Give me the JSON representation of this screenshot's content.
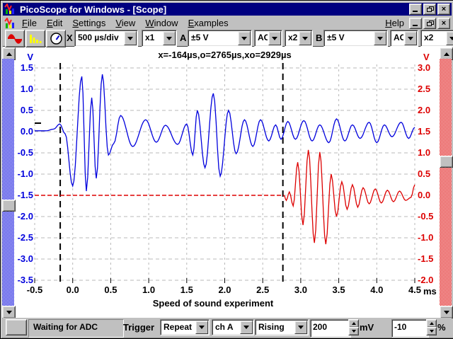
{
  "window": {
    "title": "PicoScope for Windows - [Scope]"
  },
  "menu": {
    "items": [
      {
        "label": "File",
        "u": 0
      },
      {
        "label": "Edit",
        "u": 0
      },
      {
        "label": "Settings",
        "u": 0
      },
      {
        "label": "View",
        "u": 0
      },
      {
        "label": "Window",
        "u": 0
      },
      {
        "label": "Examples",
        "u": 0
      }
    ],
    "help": {
      "label": "Help",
      "u": 0
    }
  },
  "toolbar": {
    "x_label": "X",
    "timebase": "500 µs/div",
    "x_multiplier": "x1",
    "a_label": "A",
    "a_range": "±5 V",
    "a_coupling": "AC",
    "a_multiplier": "x2",
    "b_label": "B",
    "b_range": "±5 V",
    "b_coupling": "AC",
    "b_multiplier": "x2"
  },
  "status_bar": {
    "adc_status": "Waiting for ADC",
    "trigger_label": "Trigger",
    "trigger_mode": "Repeat",
    "trigger_source": "ch A",
    "trigger_direction": "Rising",
    "threshold_value": "200",
    "threshold_unit": "mV",
    "delay_value": "-10",
    "delay_unit": "%"
  },
  "chart_data": {
    "type": "line",
    "title": "Speed of sound experiment",
    "annotation": "x=-164µs,o=2765µs,xo=2929µs",
    "x_unit": "ms",
    "x_ticks": [
      "-0.5",
      "0.0",
      "0.5",
      "1.0",
      "1.5",
      "2.0",
      "2.5",
      "3.0",
      "3.5",
      "4.0",
      "4.5"
    ],
    "xlim": [
      -0.5,
      4.5
    ],
    "grid": true,
    "left_axis": {
      "label": "V",
      "color": "#0000dd",
      "ticks": [
        "1.5",
        "1.0",
        "0.5",
        "0.0",
        "-0.5",
        "-1.0",
        "-1.5",
        "-2.0",
        "-2.5",
        "-3.0",
        "-3.5"
      ]
    },
    "right_axis": {
      "label": "V",
      "color": "#dd0000",
      "ticks": [
        "3.0",
        "2.5",
        "2.0",
        "1.5",
        "1.0",
        "0.5",
        "0.0",
        "-0.5",
        "-1.0",
        "-1.5",
        "-2.0"
      ]
    },
    "cursors": {
      "x_us": -164,
      "o_us": 2765,
      "xo_us": 2929,
      "positions_ms": [
        -0.164,
        2.765
      ]
    },
    "trigger_marker": {
      "level_v": 0.2,
      "channel": "A"
    },
    "series": [
      {
        "name": "Channel A",
        "axis": "left",
        "color": "#0000dd",
        "points": [
          [
            -0.5,
            0.02
          ],
          [
            -0.35,
            0.02
          ],
          [
            -0.25,
            0.06
          ],
          [
            -0.17,
            0.18
          ],
          [
            -0.1,
            -0.05
          ],
          [
            0.0,
            -1.28
          ],
          [
            0.12,
            1.3
          ],
          [
            0.18,
            -1.4
          ],
          [
            0.25,
            0.8
          ],
          [
            0.31,
            -1.1
          ],
          [
            0.39,
            1.35
          ],
          [
            0.47,
            -0.55
          ],
          [
            0.54,
            -0.28
          ],
          [
            0.63,
            0.38
          ],
          [
            0.79,
            -0.35
          ],
          [
            0.96,
            0.28
          ],
          [
            1.1,
            -0.25
          ],
          [
            1.22,
            0.15
          ],
          [
            1.38,
            -0.3
          ],
          [
            1.5,
            0.18
          ],
          [
            1.58,
            -0.55
          ],
          [
            1.64,
            0.5
          ],
          [
            1.74,
            -0.85
          ],
          [
            1.85,
            0.9
          ],
          [
            1.94,
            -1.05
          ],
          [
            2.05,
            0.5
          ],
          [
            2.15,
            -0.52
          ],
          [
            2.26,
            0.28
          ],
          [
            2.37,
            -0.35
          ],
          [
            2.47,
            0.28
          ],
          [
            2.58,
            -0.22
          ],
          [
            2.67,
            0.16
          ],
          [
            2.74,
            -0.18
          ],
          [
            2.83,
            0.24
          ],
          [
            2.93,
            -0.18
          ],
          [
            3.04,
            0.26
          ],
          [
            3.15,
            -0.22
          ],
          [
            3.25,
            0.16
          ],
          [
            3.37,
            -0.26
          ],
          [
            3.47,
            0.3
          ],
          [
            3.58,
            -0.22
          ],
          [
            3.68,
            0.16
          ],
          [
            3.78,
            -0.16
          ],
          [
            3.9,
            0.22
          ],
          [
            4.0,
            -0.26
          ],
          [
            4.1,
            0.16
          ],
          [
            4.2,
            -0.12
          ],
          [
            4.32,
            0.22
          ],
          [
            4.42,
            -0.16
          ],
          [
            4.5,
            0.1
          ]
        ]
      },
      {
        "name": "Channel B",
        "axis": "right",
        "color": "#dd0000",
        "flat_segment": {
          "from_ms": -0.5,
          "to_ms": 2.78,
          "value_v": 0.0,
          "style": "dashed"
        },
        "points": [
          [
            2.78,
            0.0
          ],
          [
            2.81,
            -0.12
          ],
          [
            2.85,
            0.08
          ],
          [
            2.9,
            -0.25
          ],
          [
            2.96,
            0.78
          ],
          [
            3.03,
            -0.7
          ],
          [
            3.1,
            1.07
          ],
          [
            3.18,
            -1.12
          ],
          [
            3.25,
            1.02
          ],
          [
            3.33,
            -1.15
          ],
          [
            3.4,
            0.5
          ],
          [
            3.47,
            -0.5
          ],
          [
            3.54,
            0.32
          ],
          [
            3.61,
            -0.33
          ],
          [
            3.68,
            0.25
          ],
          [
            3.75,
            -0.28
          ],
          [
            3.82,
            0.18
          ],
          [
            3.9,
            -0.2
          ],
          [
            3.98,
            0.15
          ],
          [
            4.06,
            -0.18
          ],
          [
            4.14,
            0.12
          ],
          [
            4.22,
            -0.15
          ],
          [
            4.3,
            0.1
          ],
          [
            4.38,
            -0.12
          ],
          [
            4.45,
            -0.05
          ],
          [
            4.5,
            0.25
          ]
        ]
      }
    ]
  }
}
